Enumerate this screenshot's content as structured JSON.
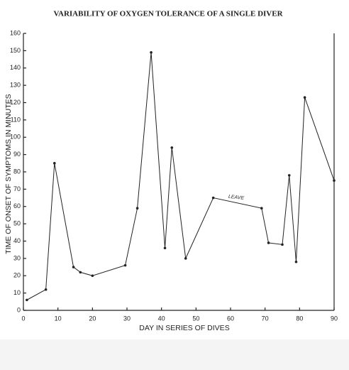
{
  "chart_data": {
    "type": "line",
    "title": "VARIABILITY OF OXYGEN TOLERANCE OF A SINGLE DIVER",
    "xlabel": "DAY IN SERIES OF DIVES",
    "ylabel": "TIME OF ONSET OF SYMPTOMS IN MINUTES",
    "annotation": "LEAVE",
    "x": [
      1,
      6.5,
      9,
      14.5,
      16.5,
      20,
      29.5,
      33,
      37,
      41,
      43,
      47,
      55,
      69,
      71,
      75,
      77,
      79,
      81.5,
      90
    ],
    "series": [
      {
        "name": null,
        "color": "#222222",
        "values": [
          6,
          12,
          85,
          25,
          22,
          20,
          26,
          59,
          149,
          36,
          94,
          30,
          65,
          59,
          39,
          38,
          78,
          28,
          123,
          75
        ]
      }
    ],
    "xlim": [
      0,
      90
    ],
    "xticks": [
      0,
      10,
      20,
      30,
      40,
      50,
      60,
      70,
      80,
      90
    ],
    "ylim": [
      0,
      160
    ],
    "yticks": [
      0,
      10,
      20,
      30,
      40,
      50,
      60,
      70,
      80,
      90,
      100,
      110,
      120,
      130,
      140,
      150,
      160
    ],
    "grid": false
  }
}
